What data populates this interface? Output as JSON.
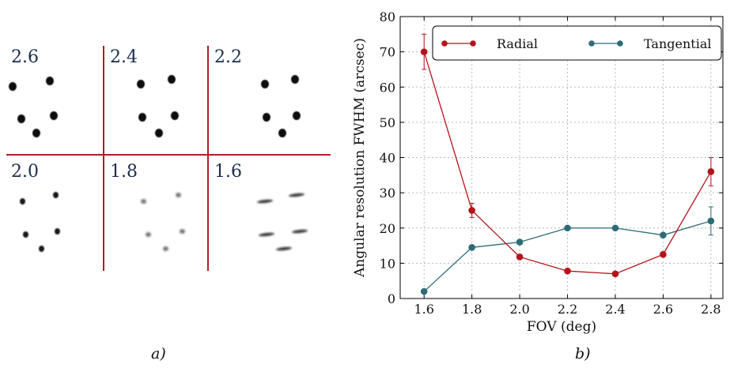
{
  "panel_a": {
    "caption": "a)",
    "cells": [
      {
        "label": "2.6",
        "spots": [
          [
            8,
            51,
            "compact"
          ],
          [
            55,
            44,
            "compact"
          ],
          [
            19,
            92,
            "compact"
          ],
          [
            60,
            88,
            "compact"
          ],
          [
            38,
            110,
            "compact"
          ]
        ]
      },
      {
        "label": "2.4",
        "spots": [
          [
            45,
            48,
            "compact"
          ],
          [
            84,
            42,
            "compact"
          ],
          [
            47,
            90,
            "compact"
          ],
          [
            88,
            88,
            "compact"
          ],
          [
            68,
            110,
            "compact"
          ]
        ]
      },
      {
        "label": "2.2",
        "spots": [
          [
            70,
            48,
            "compact"
          ],
          [
            108,
            42,
            "compact"
          ],
          [
            72,
            90,
            "compact"
          ],
          [
            110,
            88,
            "compact"
          ],
          [
            92,
            110,
            "compact"
          ]
        ]
      },
      {
        "label": "2.0",
        "spots": [
          [
            20,
            52,
            "small"
          ],
          [
            62,
            44,
            "small"
          ],
          [
            24,
            94,
            "small"
          ],
          [
            64,
            90,
            "small"
          ],
          [
            44,
            112,
            "small"
          ]
        ]
      },
      {
        "label": "1.8",
        "spots": [
          [
            48,
            52,
            "faint"
          ],
          [
            92,
            44,
            "faint"
          ],
          [
            54,
            94,
            "faint"
          ],
          [
            97,
            90,
            "faint"
          ],
          [
            76,
            112,
            "faint"
          ]
        ]
      },
      {
        "label": "1.6",
        "spots": [
          [
            70,
            52,
            "streak"
          ],
          [
            110,
            44,
            "streak"
          ],
          [
            72,
            94,
            "streak"
          ],
          [
            114,
            90,
            "streak"
          ],
          [
            94,
            112,
            "streak"
          ]
        ]
      }
    ]
  },
  "panel_b": {
    "caption": "b)"
  },
  "chart_data": {
    "type": "line",
    "xlabel": "FOV (deg)",
    "ylabel": "Angular resolution FWHM (arcsec)",
    "xlim": [
      1.5,
      2.85
    ],
    "ylim": [
      0,
      80
    ],
    "xticks": [
      "1.6",
      "1.8",
      "2.0",
      "2.2",
      "2.4",
      "2.6",
      "2.8"
    ],
    "yticks": [
      "0",
      "10",
      "20",
      "30",
      "40",
      "50",
      "60",
      "70",
      "80"
    ],
    "grid": true,
    "legend_position": "top",
    "series": [
      {
        "name": "Radial",
        "color": "#b5121b",
        "x": [
          1.6,
          1.8,
          2.0,
          2.2,
          2.4,
          2.6,
          2.8
        ],
        "y": [
          70,
          25,
          11.8,
          7.8,
          7,
          12.5,
          36
        ],
        "err": [
          5,
          2,
          0,
          0,
          0,
          0,
          4
        ]
      },
      {
        "name": "Tangential",
        "color": "#2e6b78",
        "x": [
          1.6,
          1.8,
          2.0,
          2.2,
          2.4,
          2.6,
          2.8
        ],
        "y": [
          2,
          14.5,
          16,
          20,
          20,
          18,
          22
        ],
        "err": [
          0,
          0,
          0,
          0,
          0,
          0,
          4
        ]
      }
    ]
  }
}
